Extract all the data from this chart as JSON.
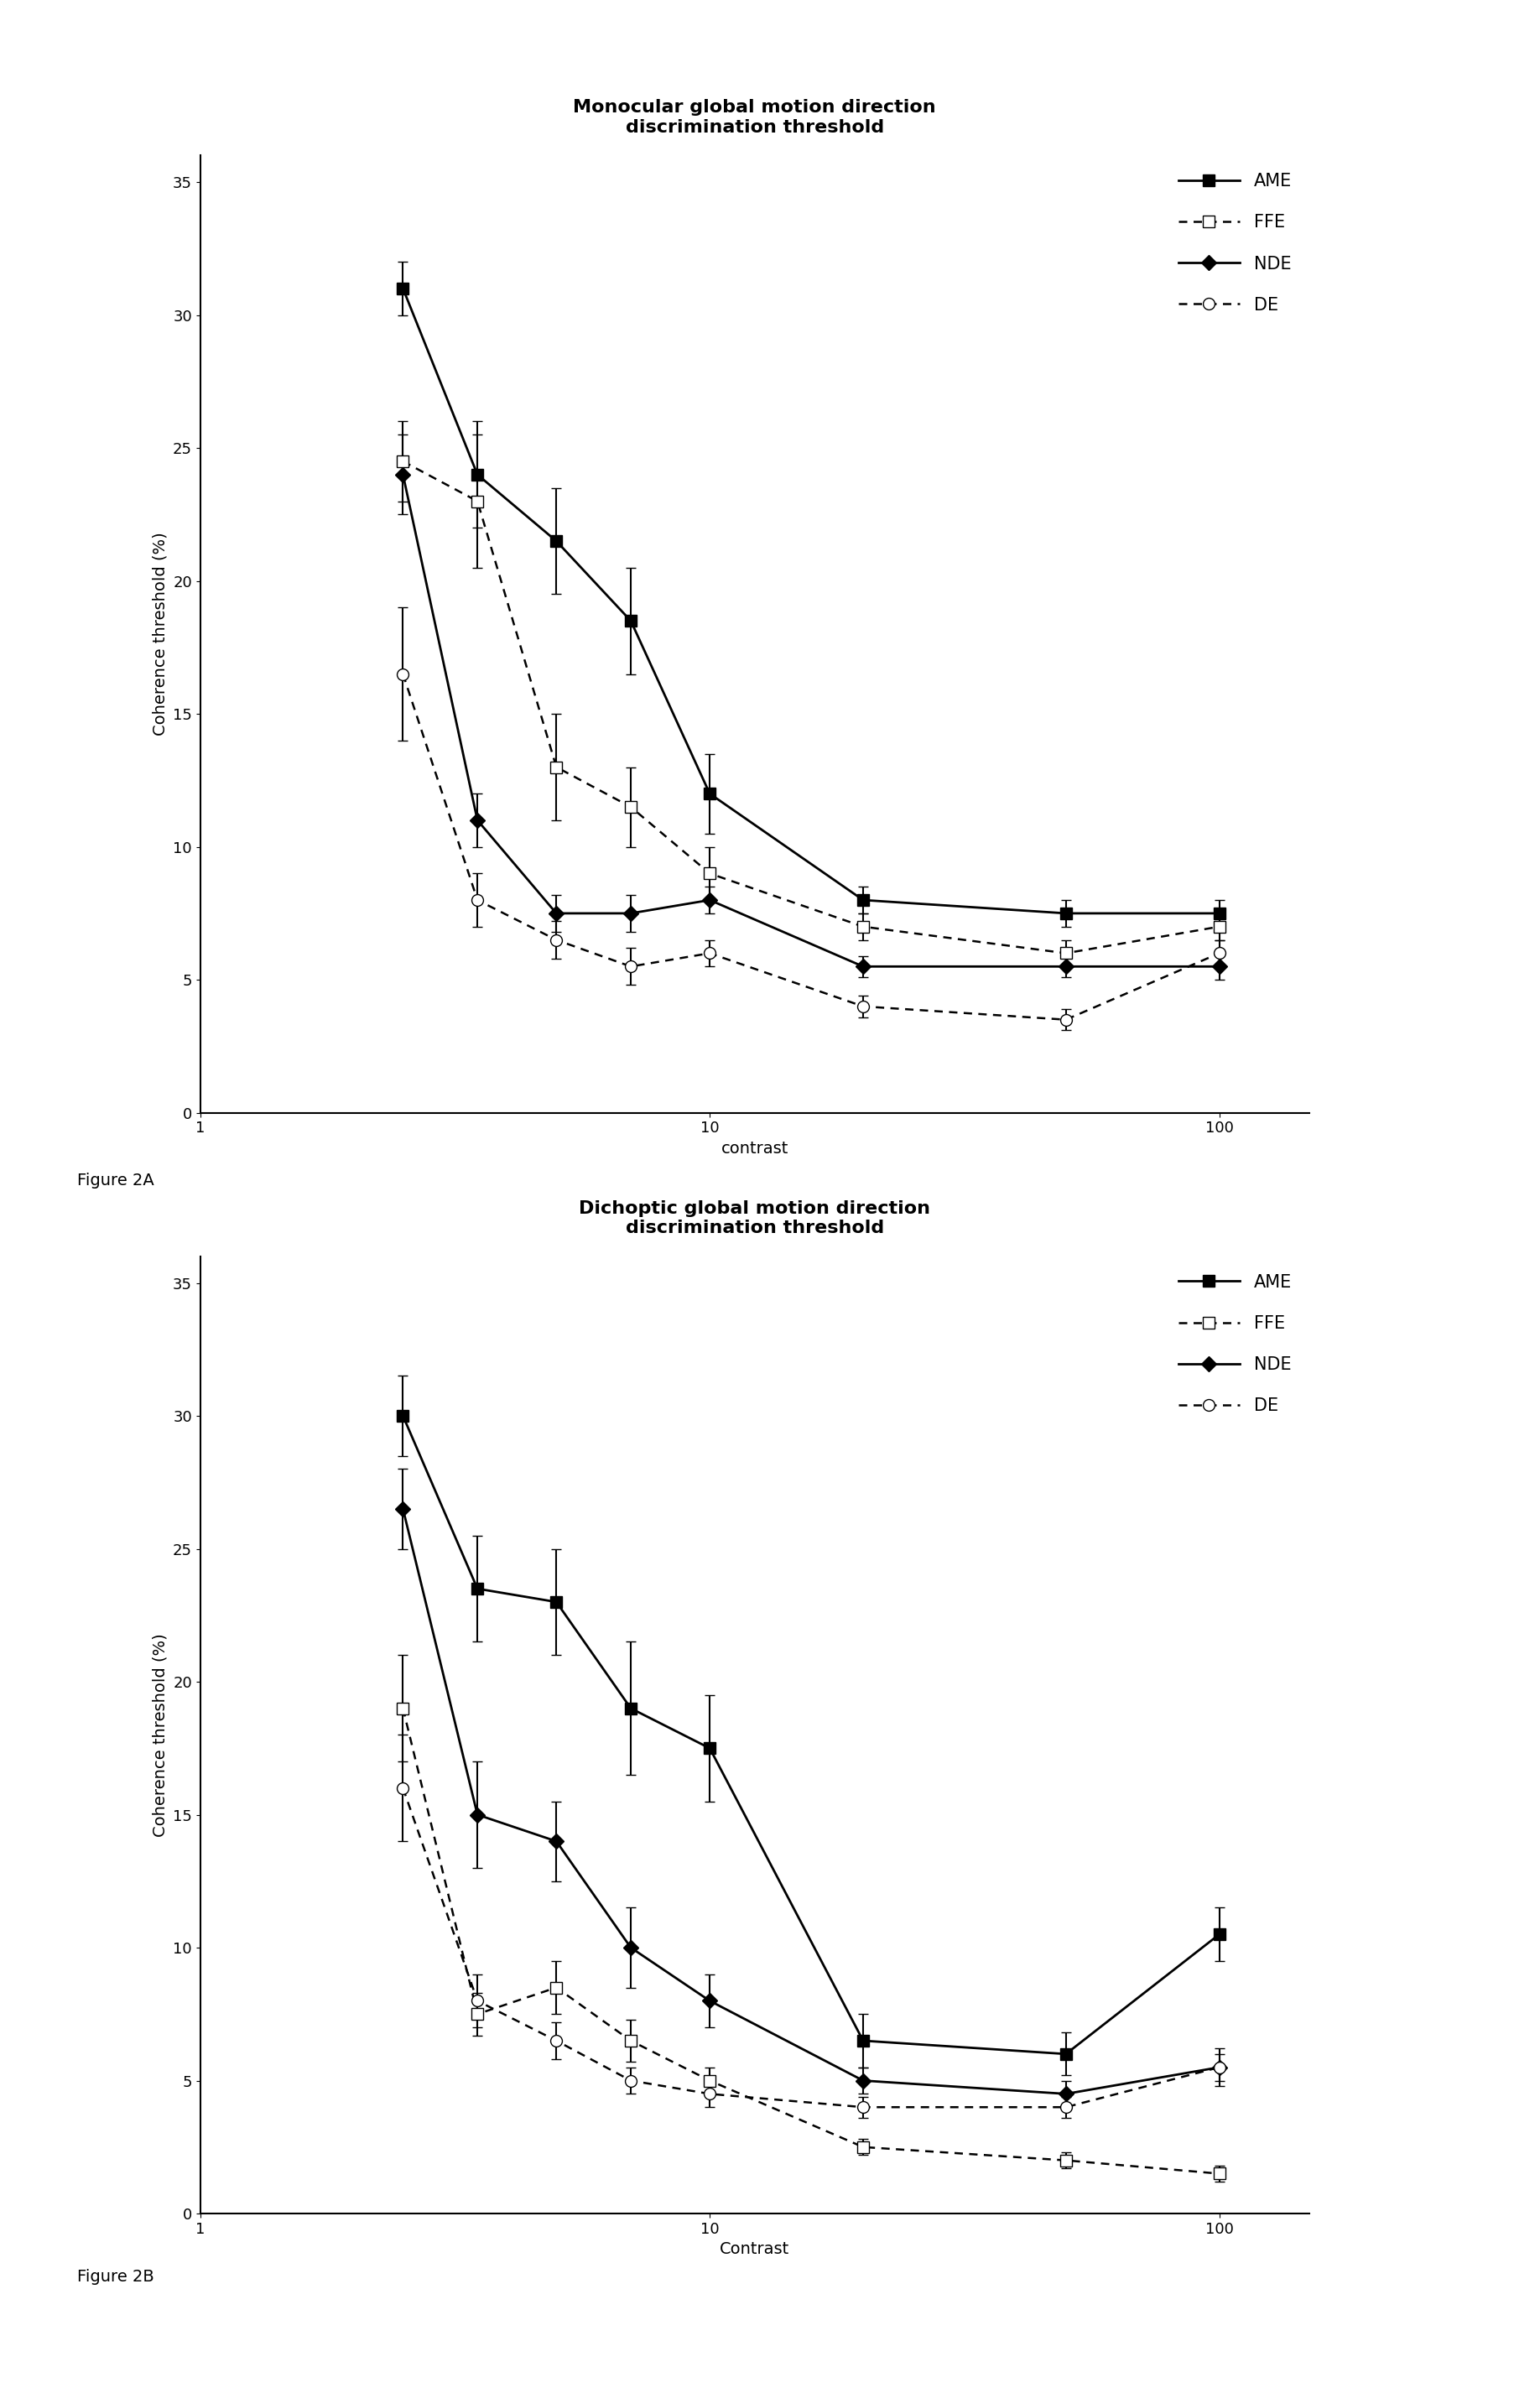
{
  "title_A": "Monocular global motion direction\ndiscrimination threshold",
  "title_B": "Dichoptic global motion direction\ndiscrimination threshold",
  "xlabel_A": "contrast",
  "xlabel_B": "Contrast",
  "ylabel": "Coherence threshold (%)",
  "fig2A_label": "Figure 2A",
  "fig2B_label": "Figure 2B",
  "x": [
    2.5,
    3.5,
    5,
    7,
    10,
    20,
    50,
    100
  ],
  "A_AME_y": [
    31.0,
    24.0,
    21.5,
    18.5,
    12.0,
    8.0,
    7.5,
    7.5
  ],
  "A_AME_err": [
    1.0,
    2.0,
    2.0,
    2.0,
    1.5,
    0.5,
    0.5,
    0.5
  ],
  "A_FFE_y": [
    24.5,
    23.0,
    13.0,
    11.5,
    9.0,
    7.0,
    6.0,
    7.0
  ],
  "A_FFE_err": [
    1.5,
    2.5,
    2.0,
    1.5,
    1.0,
    0.5,
    0.5,
    0.5
  ],
  "A_NDE_y": [
    24.0,
    11.0,
    7.5,
    7.5,
    8.0,
    5.5,
    5.5,
    5.5
  ],
  "A_NDE_err": [
    1.5,
    1.0,
    0.7,
    0.7,
    0.5,
    0.4,
    0.4,
    0.5
  ],
  "A_DE_y": [
    16.5,
    8.0,
    6.5,
    5.5,
    6.0,
    4.0,
    3.5,
    6.0
  ],
  "A_DE_err": [
    2.5,
    1.0,
    0.7,
    0.7,
    0.5,
    0.4,
    0.4,
    0.5
  ],
  "B_AME_y": [
    30.0,
    23.5,
    23.0,
    19.0,
    17.5,
    6.5,
    6.0,
    10.5
  ],
  "B_AME_err": [
    1.5,
    2.0,
    2.0,
    2.5,
    2.0,
    1.0,
    0.8,
    1.0
  ],
  "B_FFE_y": [
    19.0,
    7.5,
    8.5,
    6.5,
    5.0,
    2.5,
    2.0,
    1.5
  ],
  "B_FFE_err": [
    2.0,
    0.8,
    1.0,
    0.8,
    0.5,
    0.3,
    0.3,
    0.3
  ],
  "B_NDE_y": [
    26.5,
    15.0,
    14.0,
    10.0,
    8.0,
    5.0,
    4.5,
    5.5
  ],
  "B_NDE_err": [
    1.5,
    2.0,
    1.5,
    1.5,
    1.0,
    0.5,
    0.5,
    0.7
  ],
  "B_DE_y": [
    16.0,
    8.0,
    6.5,
    5.0,
    4.5,
    4.0,
    4.0,
    5.5
  ],
  "B_DE_err": [
    2.0,
    1.0,
    0.7,
    0.5,
    0.5,
    0.4,
    0.4,
    0.5
  ],
  "legend_labels": [
    "AME",
    "FFE",
    "NDE",
    "DE"
  ],
  "title_fontsize": 16,
  "label_fontsize": 14,
  "tick_fontsize": 13,
  "legend_fontsize": 15,
  "figtext_fontsize": 14
}
